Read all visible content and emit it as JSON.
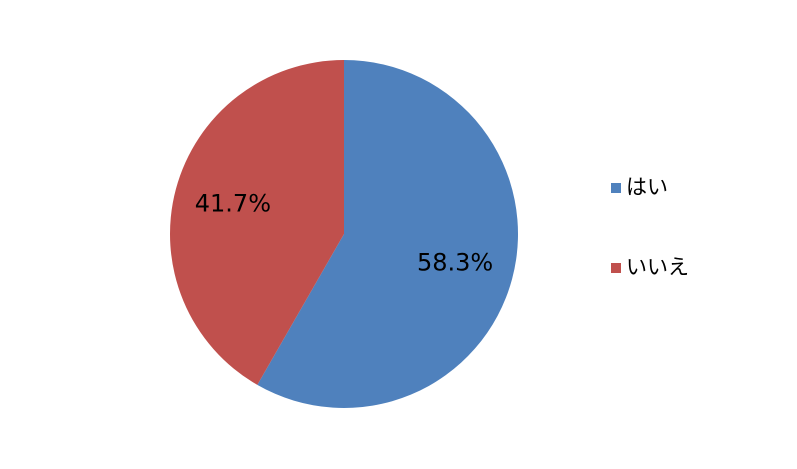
{
  "chart_data": {
    "type": "pie",
    "categories": [
      "はい",
      "いいえ"
    ],
    "values": [
      58.3,
      41.7
    ],
    "value_labels": [
      "58.3%",
      "41.7%"
    ],
    "colors": [
      "#4f81bd",
      "#c0504d"
    ],
    "legend": "right"
  }
}
